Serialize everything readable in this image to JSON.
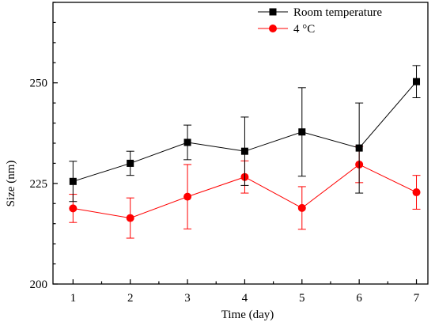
{
  "chart_data": {
    "type": "line",
    "title": "",
    "xlabel": "Time (day)",
    "ylabel": "Size (nm)",
    "x": [
      1,
      2,
      3,
      4,
      5,
      6,
      7
    ],
    "xlim": [
      0.65,
      7.2
    ],
    "ylim": [
      200,
      270
    ],
    "x_ticks": [
      "1",
      "2",
      "3",
      "4",
      "5",
      "6",
      "7"
    ],
    "y_ticks": [
      "200",
      "225",
      "250"
    ],
    "grid": false,
    "legend_position": "top-right",
    "series": [
      {
        "name": "Room temperature",
        "color": "#000000",
        "marker": "square",
        "values": [
          225.5,
          230,
          235.2,
          233,
          237.8,
          233.8,
          250.3
        ],
        "error": [
          5,
          3,
          4.3,
          8.5,
          11,
          11.2,
          4
        ]
      },
      {
        "name": "4 °C",
        "color": "#ff0000",
        "marker": "circle",
        "values": [
          218.8,
          216.4,
          221.7,
          226.6,
          218.9,
          229.7,
          222.8
        ],
        "error": [
          3.5,
          5,
          8,
          4,
          5.3,
          4.5,
          4.2
        ]
      }
    ]
  }
}
